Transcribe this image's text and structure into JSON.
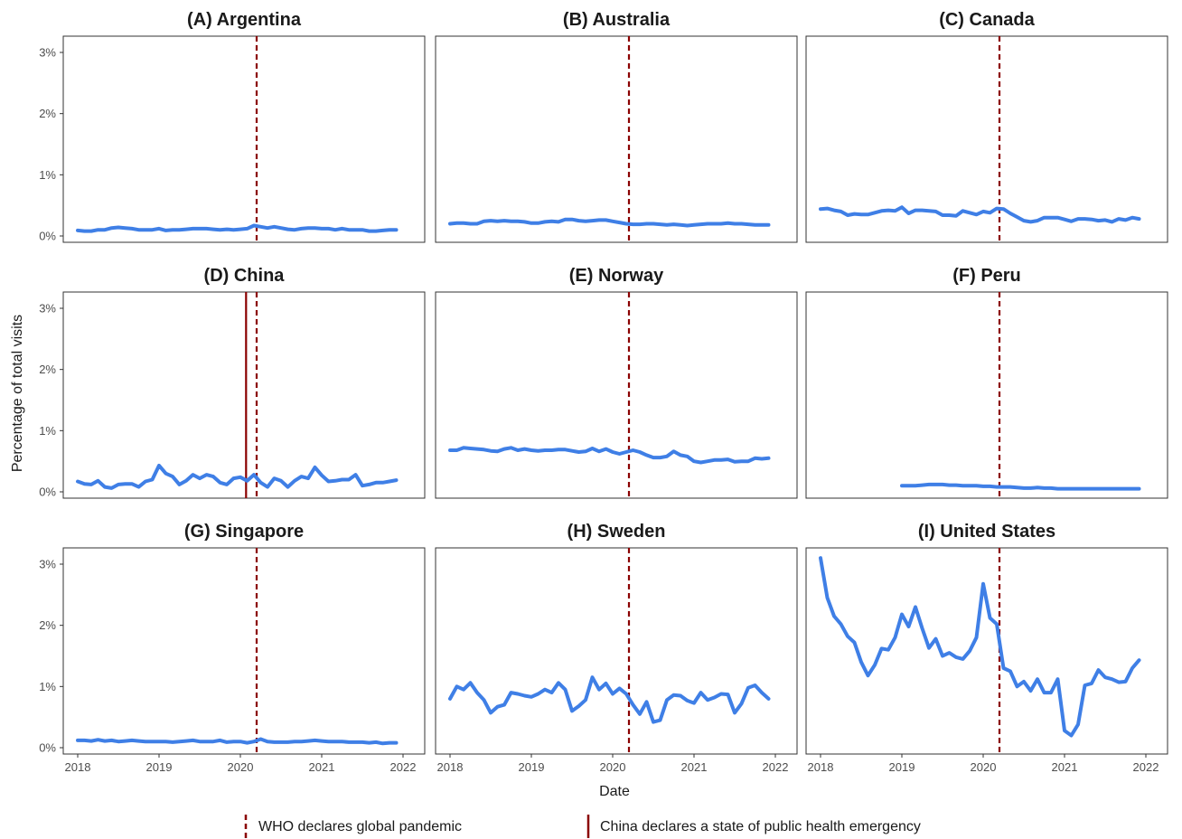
{
  "chart_data": {
    "type": "line",
    "xlabel": "Date",
    "ylabel": "Percentage of total visits",
    "xlim": [
      2018,
      2022
    ],
    "ylim": [
      0,
      3.3
    ],
    "x_ticks": [
      "2018",
      "2019",
      "2020",
      "2021",
      "2022"
    ],
    "y_ticks": [
      "0%",
      "1%",
      "2%",
      "3%"
    ],
    "line_color": "#3f7fe6",
    "events": [
      {
        "label": "WHO declares global pandemic",
        "x": 2020.2,
        "style": "dashed",
        "color": "#8b0000"
      },
      {
        "label": "China declares a state of public health emergency",
        "x": 2020.07,
        "style": "solid",
        "color": "#8b0000"
      }
    ],
    "panels": [
      {
        "title": "(A) Argentina",
        "x_start": 2018,
        "china_line": false,
        "values": [
          0.09,
          0.08,
          0.08,
          0.1,
          0.1,
          0.13,
          0.14,
          0.13,
          0.12,
          0.1,
          0.1,
          0.1,
          0.12,
          0.09,
          0.1,
          0.1,
          0.11,
          0.12,
          0.12,
          0.12,
          0.11,
          0.1,
          0.11,
          0.1,
          0.11,
          0.12,
          0.17,
          0.15,
          0.13,
          0.15,
          0.13,
          0.11,
          0.1,
          0.12,
          0.13,
          0.13,
          0.12,
          0.12,
          0.1,
          0.12,
          0.1,
          0.1,
          0.1,
          0.08,
          0.08,
          0.09,
          0.1,
          0.1
        ]
      },
      {
        "title": "(B) Australia",
        "x_start": 2018,
        "china_line": false,
        "values": [
          0.2,
          0.21,
          0.21,
          0.2,
          0.2,
          0.24,
          0.25,
          0.24,
          0.25,
          0.24,
          0.24,
          0.23,
          0.21,
          0.21,
          0.23,
          0.24,
          0.23,
          0.27,
          0.27,
          0.25,
          0.24,
          0.25,
          0.26,
          0.26,
          0.24,
          0.22,
          0.2,
          0.19,
          0.19,
          0.2,
          0.2,
          0.19,
          0.18,
          0.19,
          0.18,
          0.17,
          0.18,
          0.19,
          0.2,
          0.2,
          0.2,
          0.21,
          0.2,
          0.2,
          0.19,
          0.18,
          0.18,
          0.18
        ]
      },
      {
        "title": "(C) Canada",
        "x_start": 2018,
        "china_line": false,
        "values": [
          0.44,
          0.45,
          0.42,
          0.4,
          0.34,
          0.36,
          0.35,
          0.35,
          0.38,
          0.41,
          0.42,
          0.41,
          0.47,
          0.37,
          0.42,
          0.42,
          0.41,
          0.4,
          0.34,
          0.34,
          0.33,
          0.41,
          0.38,
          0.35,
          0.4,
          0.38,
          0.45,
          0.44,
          0.37,
          0.31,
          0.25,
          0.23,
          0.25,
          0.3,
          0.3,
          0.3,
          0.27,
          0.24,
          0.28,
          0.28,
          0.27,
          0.25,
          0.26,
          0.23,
          0.28,
          0.26,
          0.3,
          0.28
        ]
      },
      {
        "title": "(D) China",
        "x_start": 2018,
        "china_line": true,
        "values": [
          0.17,
          0.13,
          0.12,
          0.18,
          0.08,
          0.06,
          0.12,
          0.13,
          0.13,
          0.08,
          0.17,
          0.2,
          0.43,
          0.3,
          0.25,
          0.12,
          0.18,
          0.28,
          0.22,
          0.28,
          0.25,
          0.15,
          0.12,
          0.22,
          0.24,
          0.18,
          0.28,
          0.15,
          0.08,
          0.22,
          0.18,
          0.08,
          0.18,
          0.25,
          0.22,
          0.4,
          0.27,
          0.17,
          0.18,
          0.2,
          0.2,
          0.28,
          0.1,
          0.12,
          0.15,
          0.15,
          0.17,
          0.19
        ]
      },
      {
        "title": "(E) Norway",
        "x_start": 2018,
        "china_line": false,
        "values": [
          0.68,
          0.68,
          0.72,
          0.71,
          0.7,
          0.69,
          0.67,
          0.66,
          0.7,
          0.72,
          0.68,
          0.7,
          0.68,
          0.67,
          0.68,
          0.68,
          0.69,
          0.69,
          0.67,
          0.65,
          0.66,
          0.71,
          0.66,
          0.7,
          0.65,
          0.62,
          0.65,
          0.68,
          0.65,
          0.6,
          0.56,
          0.56,
          0.58,
          0.66,
          0.6,
          0.58,
          0.5,
          0.48,
          0.5,
          0.52,
          0.52,
          0.53,
          0.49,
          0.5,
          0.5,
          0.55,
          0.54,
          0.55
        ]
      },
      {
        "title": "(F) Peru",
        "x_start": 2019,
        "china_line": false,
        "values": [
          0.1,
          0.1,
          0.1,
          0.11,
          0.12,
          0.12,
          0.12,
          0.11,
          0.11,
          0.1,
          0.1,
          0.1,
          0.09,
          0.09,
          0.08,
          0.08,
          0.08,
          0.07,
          0.06,
          0.06,
          0.07,
          0.06,
          0.06,
          0.05,
          0.05,
          0.05,
          0.05,
          0.05,
          0.05,
          0.05,
          0.05,
          0.05,
          0.05,
          0.05,
          0.05,
          0.05
        ]
      },
      {
        "title": "(G) Singapore",
        "x_start": 2018,
        "china_line": false,
        "values": [
          0.12,
          0.12,
          0.11,
          0.13,
          0.11,
          0.12,
          0.1,
          0.11,
          0.12,
          0.11,
          0.1,
          0.1,
          0.1,
          0.1,
          0.09,
          0.1,
          0.11,
          0.12,
          0.1,
          0.1,
          0.1,
          0.12,
          0.09,
          0.1,
          0.1,
          0.08,
          0.1,
          0.14,
          0.1,
          0.09,
          0.09,
          0.09,
          0.1,
          0.1,
          0.11,
          0.12,
          0.11,
          0.1,
          0.1,
          0.1,
          0.09,
          0.09,
          0.09,
          0.08,
          0.09,
          0.07,
          0.08,
          0.08
        ]
      },
      {
        "title": "(H) Sweden",
        "x_start": 2018,
        "china_line": false,
        "values": [
          0.8,
          1.0,
          0.95,
          1.06,
          0.9,
          0.78,
          0.57,
          0.67,
          0.7,
          0.9,
          0.88,
          0.85,
          0.83,
          0.88,
          0.95,
          0.9,
          1.06,
          0.95,
          0.6,
          0.68,
          0.78,
          1.15,
          0.95,
          1.05,
          0.88,
          0.97,
          0.88,
          0.7,
          0.55,
          0.75,
          0.42,
          0.45,
          0.78,
          0.86,
          0.85,
          0.77,
          0.73,
          0.9,
          0.78,
          0.82,
          0.88,
          0.87,
          0.57,
          0.72,
          0.98,
          1.02,
          0.9,
          0.8
        ]
      },
      {
        "title": "(I) United States",
        "x_start": 2018,
        "china_line": false,
        "values": [
          3.1,
          2.45,
          2.15,
          2.02,
          1.82,
          1.72,
          1.4,
          1.18,
          1.35,
          1.62,
          1.6,
          1.8,
          2.18,
          1.98,
          2.3,
          1.95,
          1.63,
          1.78,
          1.5,
          1.55,
          1.48,
          1.45,
          1.58,
          1.8,
          2.68,
          2.12,
          2.02,
          1.3,
          1.25,
          1.0,
          1.08,
          0.93,
          1.12,
          0.9,
          0.9,
          1.12,
          0.28,
          0.2,
          0.38,
          1.02,
          1.05,
          1.27,
          1.15,
          1.12,
          1.07,
          1.08,
          1.3,
          1.43
        ]
      }
    ]
  }
}
